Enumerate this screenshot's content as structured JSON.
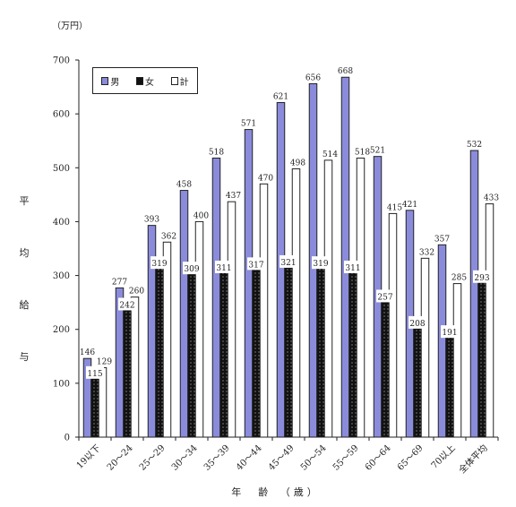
{
  "chart_data": {
    "type": "bar",
    "unit_label": "（万円）",
    "ylabel": "平均給与",
    "xlabel": "年　齢　（歳）",
    "ylim": [
      0,
      700
    ],
    "yticks": [
      0,
      100,
      200,
      300,
      400,
      500,
      600,
      700
    ],
    "grid": false,
    "legend_position": "top-left",
    "categories": [
      "19以下",
      "20～24",
      "25～29",
      "30～34",
      "35～39",
      "40～44",
      "45～49",
      "50～54",
      "55～59",
      "60～64",
      "65～69",
      "70以上",
      "全体平均"
    ],
    "series": [
      {
        "name": "男",
        "color": "#8b8bdb",
        "values": [
          146,
          277,
          393,
          458,
          518,
          571,
          621,
          656,
          668,
          521,
          421,
          357,
          532
        ]
      },
      {
        "name": "女",
        "color": "#111111",
        "values": [
          115,
          242,
          319,
          309,
          311,
          317,
          321,
          319,
          311,
          257,
          208,
          191,
          293
        ]
      },
      {
        "name": "計",
        "color": "#ffffff",
        "values": [
          129,
          260,
          362,
          400,
          437,
          470,
          498,
          514,
          518,
          415,
          332,
          285,
          433
        ]
      }
    ]
  }
}
